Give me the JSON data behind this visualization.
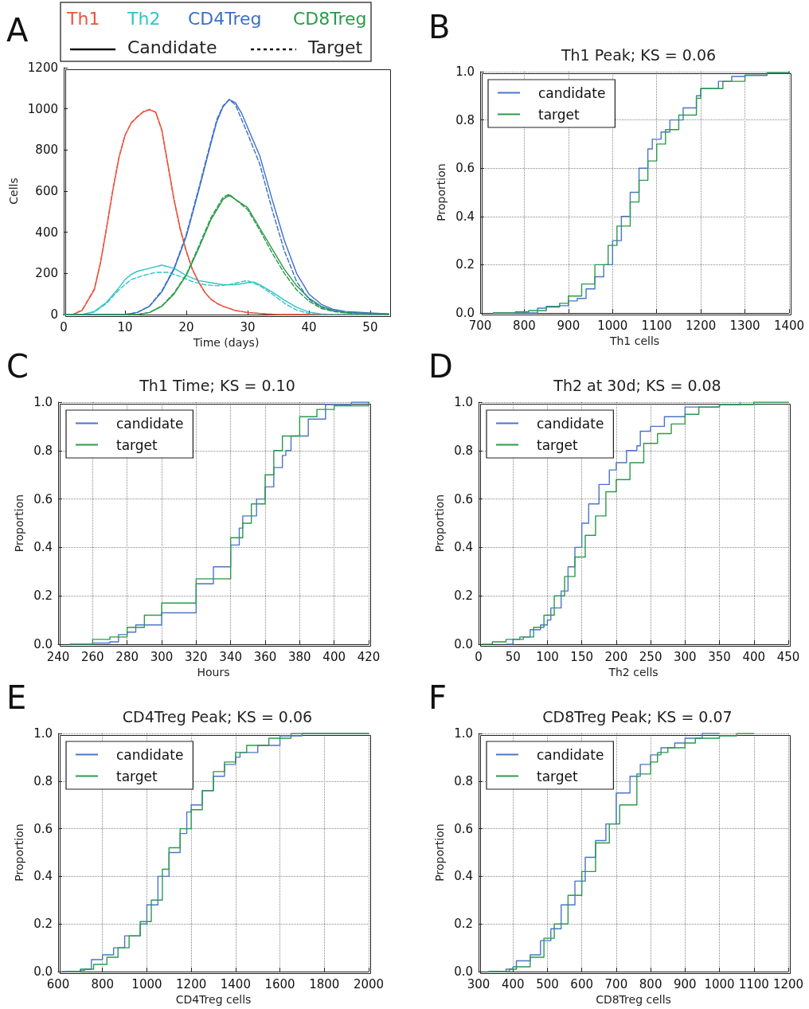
{
  "chart_data": [
    {
      "type": "line",
      "xlabel": "Time (days)",
      "ylabel": "Cells",
      "annotations": [
        "A",
        "Candidate",
        "Target"
      ],
      "legend": "top",
      "xlim": [
        0,
        53
      ],
      "xticks": [
        0,
        10,
        20,
        30,
        40,
        50
      ],
      "ylim": [
        0,
        1200
      ],
      "yticks": [
        0,
        200,
        400,
        600,
        800,
        1000,
        1200
      ],
      "series": [
        {
          "name": "Th1",
          "color": "#e8553e",
          "x": [
            0,
            1.5,
            3,
            5,
            6,
            7,
            8,
            9,
            10,
            11,
            12,
            13,
            14,
            15,
            16,
            17,
            18,
            19,
            20,
            21,
            22,
            23,
            24,
            25,
            26,
            28,
            30,
            33,
            35,
            53
          ],
          "values": [
            0,
            0,
            20,
            120,
            250,
            420,
            600,
            760,
            870,
            930,
            960,
            985,
            995,
            985,
            900,
            730,
            560,
            420,
            310,
            220,
            160,
            110,
            75,
            55,
            40,
            20,
            10,
            3,
            0,
            0
          ]
        },
        {
          "name": "Th2",
          "color": "#2ec4c8",
          "x": [
            0,
            3,
            5,
            7,
            9,
            10,
            11,
            12,
            14,
            16,
            18,
            20,
            22,
            24,
            26,
            28,
            30,
            31,
            32,
            34,
            36,
            38,
            40,
            42,
            44,
            53
          ],
          "values": [
            0,
            0,
            15,
            60,
            130,
            170,
            195,
            210,
            225,
            240,
            225,
            190,
            165,
            155,
            145,
            145,
            155,
            158,
            145,
            110,
            70,
            35,
            12,
            3,
            0,
            0
          ]
        },
        {
          "name": "CD4Treg",
          "color": "#3a6fc9",
          "x": [
            0,
            10,
            12,
            14,
            16,
            18,
            20,
            22,
            24,
            25,
            26,
            27,
            28,
            29,
            30,
            32,
            34,
            36,
            38,
            40,
            42,
            44,
            46,
            50,
            53
          ],
          "values": [
            0,
            0,
            10,
            40,
            110,
            220,
            380,
            600,
            830,
            940,
            1010,
            1045,
            1030,
            980,
            910,
            770,
            560,
            360,
            200,
            100,
            50,
            25,
            15,
            8,
            3
          ]
        },
        {
          "name": "CD8Treg",
          "color": "#2a9a4a",
          "x": [
            0,
            12,
            14,
            16,
            18,
            20,
            22,
            24,
            26,
            27,
            28,
            30,
            32,
            34,
            36,
            38,
            40,
            42,
            44,
            46,
            50,
            53
          ],
          "values": [
            0,
            0,
            10,
            40,
            100,
            190,
            320,
            460,
            560,
            580,
            560,
            520,
            420,
            320,
            220,
            140,
            80,
            40,
            20,
            10,
            5,
            2
          ]
        },
        {
          "color": "#e8553e",
          "line_style": "dashed",
          "x": [
            0,
            1.5,
            3,
            5,
            6,
            7,
            8,
            9,
            10,
            11,
            12,
            13,
            14,
            15,
            16,
            17,
            18,
            19,
            20,
            21,
            22,
            23,
            24,
            25,
            26,
            28,
            30,
            33,
            35,
            53
          ],
          "values": [
            0,
            0,
            22,
            125,
            255,
            425,
            605,
            765,
            872,
            932,
            962,
            987,
            997,
            983,
            895,
            725,
            555,
            415,
            305,
            218,
            158,
            108,
            74,
            54,
            40,
            20,
            10,
            3,
            0,
            0
          ]
        },
        {
          "color": "#2ec4c8",
          "line_style": "dashed",
          "x": [
            0,
            3,
            5,
            7,
            9,
            11,
            13,
            15,
            17,
            19,
            21,
            23,
            25,
            27,
            29,
            30,
            32,
            34,
            36,
            38,
            40,
            42,
            53
          ],
          "values": [
            0,
            0,
            12,
            55,
            120,
            170,
            190,
            205,
            205,
            185,
            160,
            145,
            140,
            145,
            160,
            165,
            140,
            100,
            55,
            22,
            5,
            0,
            0
          ]
        },
        {
          "color": "#3a6fc9",
          "line_style": "dashed",
          "x": [
            0,
            10,
            12,
            14,
            16,
            18,
            20,
            22,
            24,
            25,
            26,
            27,
            28,
            30,
            32,
            34,
            36,
            38,
            40,
            42,
            44,
            46,
            50,
            53
          ],
          "values": [
            0,
            0,
            10,
            42,
            115,
            225,
            390,
            610,
            840,
            950,
            1015,
            1045,
            1020,
            880,
            730,
            510,
            310,
            160,
            75,
            35,
            18,
            10,
            5,
            2
          ]
        },
        {
          "color": "#2a9a4a",
          "line_style": "dashed",
          "x": [
            0,
            12,
            14,
            16,
            18,
            20,
            22,
            24,
            26,
            27,
            28,
            30,
            32,
            34,
            36,
            38,
            40,
            42,
            44,
            46,
            50,
            53
          ],
          "values": [
            0,
            0,
            10,
            42,
            105,
            195,
            330,
            470,
            570,
            585,
            560,
            510,
            410,
            300,
            200,
            120,
            65,
            30,
            15,
            8,
            4,
            2
          ]
        }
      ]
    },
    {
      "type": "step",
      "title": "Th1 Peak; KS = 0.06",
      "xlabel": "Th1 cells",
      "ylabel": "Proportion",
      "annotations": [
        "B"
      ],
      "legend": "top left",
      "grid": true,
      "xlim": [
        700,
        1400
      ],
      "xticks": [
        700,
        800,
        900,
        1000,
        1100,
        1200,
        1300,
        1400
      ],
      "ylim": [
        0,
        1
      ],
      "yticks": [
        {
          "value": 0,
          "label": "0.0"
        },
        {
          "value": 0.2,
          "label": "0.2"
        },
        {
          "value": 0.4,
          "label": "0.4"
        },
        {
          "value": 0.6,
          "label": "0.6"
        },
        {
          "value": 0.8,
          "label": "0.8"
        },
        {
          "value": 1,
          "label": "1.0"
        }
      ],
      "series": [
        {
          "name": "candidate",
          "color": "#4a75c8",
          "x": [
            730,
            810,
            830,
            850,
            880,
            900,
            920,
            940,
            960,
            980,
            1000,
            1020,
            1040,
            1060,
            1080,
            1090,
            1110,
            1130,
            1160,
            1190,
            1200,
            1240,
            1270,
            1300,
            1350,
            1400
          ],
          "values": [
            0,
            0,
            0.02,
            0.027,
            0.03,
            0.05,
            0.06,
            0.1,
            0.15,
            0.2,
            0.3,
            0.4,
            0.5,
            0.6,
            0.68,
            0.72,
            0.75,
            0.8,
            0.85,
            0.9,
            0.93,
            0.96,
            0.98,
            0.985,
            0.995,
            1
          ]
        },
        {
          "name": "target",
          "color": "#2a9a4a",
          "x": [
            730,
            780,
            810,
            850,
            880,
            900,
            930,
            960,
            990,
            1010,
            1040,
            1060,
            1080,
            1100,
            1120,
            1150,
            1190,
            1200,
            1250,
            1300,
            1350,
            1400
          ],
          "values": [
            0,
            0.005,
            0.01,
            0.025,
            0.04,
            0.07,
            0.12,
            0.2,
            0.28,
            0.36,
            0.46,
            0.55,
            0.63,
            0.7,
            0.76,
            0.82,
            0.89,
            0.93,
            0.96,
            0.985,
            0.995,
            1
          ]
        }
      ]
    },
    {
      "type": "step",
      "title": "Th1 Time; KS = 0.10",
      "xlabel": "Hours",
      "ylabel": "Proportion",
      "annotations": [
        "C"
      ],
      "legend": "top left",
      "grid": true,
      "xlim": [
        240,
        420
      ],
      "xticks": [
        240,
        260,
        280,
        300,
        320,
        340,
        360,
        380,
        400,
        420
      ],
      "ylim": [
        0,
        1
      ],
      "yticks": [
        {
          "value": 0,
          "label": "0.0"
        },
        {
          "value": 0.2,
          "label": "0.2"
        },
        {
          "value": 0.4,
          "label": "0.4"
        },
        {
          "value": 0.6,
          "label": "0.6"
        },
        {
          "value": 0.8,
          "label": "0.8"
        },
        {
          "value": 1,
          "label": "1.0"
        }
      ],
      "series": [
        {
          "name": "candidate",
          "color": "#4a75c8",
          "x": [
            247,
            260,
            270,
            275,
            280,
            285,
            300,
            320,
            330,
            340,
            345,
            347,
            355,
            360,
            365,
            370,
            372,
            375,
            385,
            395,
            410,
            420
          ],
          "values": [
            0,
            0.005,
            0.01,
            0.04,
            0.05,
            0.08,
            0.13,
            0.25,
            0.32,
            0.41,
            0.48,
            0.53,
            0.6,
            0.65,
            0.73,
            0.78,
            0.8,
            0.86,
            0.93,
            0.99,
            1,
            1
          ]
        },
        {
          "name": "target",
          "color": "#2a9a4a",
          "x": [
            247,
            260,
            270,
            280,
            290,
            300,
            320,
            340,
            347,
            352,
            360,
            365,
            370,
            380,
            390,
            400,
            405,
            420
          ],
          "values": [
            0,
            0.02,
            0.03,
            0.07,
            0.12,
            0.17,
            0.27,
            0.44,
            0.5,
            0.58,
            0.7,
            0.8,
            0.86,
            0.94,
            0.97,
            0.985,
            0.985,
            1
          ]
        }
      ]
    },
    {
      "type": "step",
      "title": "Th2 at 30d; KS = 0.08",
      "xlabel": "Th2 cells",
      "ylabel": "Proportion",
      "annotations": [
        "D"
      ],
      "legend": "top left",
      "grid": true,
      "xlim": [
        0,
        450
      ],
      "xticks": [
        0,
        50,
        100,
        150,
        200,
        250,
        300,
        350,
        400,
        450
      ],
      "ylim": [
        0,
        1
      ],
      "yticks": [
        {
          "value": 0,
          "label": "0.0"
        },
        {
          "value": 0.2,
          "label": "0.2"
        },
        {
          "value": 0.4,
          "label": "0.4"
        },
        {
          "value": 0.6,
          "label": "0.6"
        },
        {
          "value": 0.8,
          "label": "0.8"
        },
        {
          "value": 1,
          "label": "1.0"
        }
      ],
      "series": [
        {
          "name": "candidate",
          "color": "#4a75c8",
          "x": [
            40,
            50,
            65,
            75,
            90,
            100,
            105,
            120,
            130,
            140,
            150,
            160,
            175,
            190,
            200,
            215,
            230,
            235,
            250,
            270,
            300,
            350,
            380
          ],
          "values": [
            0,
            0.02,
            0.03,
            0.06,
            0.08,
            0.1,
            0.15,
            0.22,
            0.32,
            0.4,
            0.5,
            0.58,
            0.66,
            0.72,
            0.75,
            0.8,
            0.82,
            0.88,
            0.9,
            0.94,
            0.98,
            0.99,
            1
          ]
        },
        {
          "name": "target",
          "color": "#2a9a4a",
          "x": [
            5,
            20,
            40,
            60,
            80,
            95,
            110,
            125,
            140,
            155,
            170,
            185,
            200,
            220,
            240,
            260,
            280,
            300,
            320,
            350,
            400,
            450
          ],
          "values": [
            0,
            0.01,
            0.02,
            0.03,
            0.07,
            0.12,
            0.2,
            0.28,
            0.36,
            0.45,
            0.53,
            0.63,
            0.68,
            0.75,
            0.83,
            0.87,
            0.91,
            0.95,
            0.98,
            0.99,
            1,
            1
          ]
        }
      ]
    },
    {
      "type": "step",
      "title": "CD4Treg Peak; KS = 0.06",
      "xlabel": "CD4Treg cells",
      "ylabel": "Proportion",
      "annotations": [
        "E"
      ],
      "legend": "top left",
      "grid": true,
      "xlim": [
        600,
        2000
      ],
      "xticks": [
        600,
        800,
        1000,
        1200,
        1400,
        1600,
        1800,
        2000
      ],
      "ylim": [
        0,
        1
      ],
      "yticks": [
        {
          "value": 0,
          "label": "0.0"
        },
        {
          "value": 0.2,
          "label": "0.2"
        },
        {
          "value": 0.4,
          "label": "0.4"
        },
        {
          "value": 0.6,
          "label": "0.6"
        },
        {
          "value": 0.8,
          "label": "0.8"
        },
        {
          "value": 1,
          "label": "1.0"
        }
      ],
      "series": [
        {
          "name": "candidate",
          "color": "#4a75c8",
          "x": [
            620,
            700,
            720,
            750,
            800,
            850,
            900,
            970,
            1000,
            1050,
            1100,
            1150,
            1180,
            1200,
            1250,
            1300,
            1350,
            1400,
            1420,
            1500,
            1600,
            1700,
            2000
          ],
          "values": [
            0,
            0.005,
            0.01,
            0.05,
            0.07,
            0.1,
            0.15,
            0.2,
            0.28,
            0.4,
            0.5,
            0.58,
            0.67,
            0.7,
            0.76,
            0.82,
            0.87,
            0.9,
            0.92,
            0.95,
            0.99,
            1,
            1
          ]
        },
        {
          "name": "target",
          "color": "#2a9a4a",
          "x": [
            640,
            700,
            760,
            820,
            870,
            920,
            970,
            1020,
            1070,
            1100,
            1150,
            1200,
            1250,
            1300,
            1350,
            1400,
            1450,
            1550,
            1650,
            2000
          ],
          "values": [
            0,
            0.01,
            0.03,
            0.06,
            0.1,
            0.15,
            0.21,
            0.3,
            0.43,
            0.52,
            0.6,
            0.68,
            0.76,
            0.84,
            0.88,
            0.92,
            0.95,
            0.98,
            1,
            1
          ]
        }
      ]
    },
    {
      "type": "step",
      "title": "CD8Treg Peak; KS = 0.07",
      "xlabel": "CD8Treg cells",
      "ylabel": "Proportion",
      "annotations": [
        "F"
      ],
      "legend": "top left",
      "grid": true,
      "xlim": [
        300,
        1200
      ],
      "xticks": [
        300,
        400,
        500,
        600,
        700,
        800,
        900,
        1000,
        1100,
        1200
      ],
      "ylim": [
        0,
        1
      ],
      "yticks": [
        {
          "value": 0,
          "label": "0.0"
        },
        {
          "value": 0.2,
          "label": "0.2"
        },
        {
          "value": 0.4,
          "label": "0.4"
        },
        {
          "value": 0.6,
          "label": "0.6"
        },
        {
          "value": 0.8,
          "label": "0.8"
        },
        {
          "value": 1,
          "label": "1.0"
        }
      ],
      "series": [
        {
          "name": "candidate",
          "color": "#4a75c8",
          "x": [
            330,
            380,
            400,
            410,
            450,
            480,
            510,
            540,
            580,
            610,
            640,
            670,
            700,
            740,
            770,
            800,
            830,
            870,
            900,
            950,
            1000
          ],
          "values": [
            0,
            0.01,
            0.02,
            0.045,
            0.07,
            0.13,
            0.18,
            0.28,
            0.38,
            0.48,
            0.55,
            0.62,
            0.75,
            0.82,
            0.87,
            0.91,
            0.94,
            0.96,
            0.98,
            1,
            1
          ]
        },
        {
          "name": "target",
          "color": "#2a9a4a",
          "x": [
            330,
            390,
            410,
            450,
            490,
            520,
            560,
            600,
            640,
            680,
            710,
            760,
            800,
            820,
            850,
            900,
            930,
            1000,
            1050,
            1100
          ],
          "values": [
            0,
            0.01,
            0.02,
            0.06,
            0.14,
            0.2,
            0.32,
            0.42,
            0.54,
            0.62,
            0.7,
            0.83,
            0.88,
            0.92,
            0.94,
            0.96,
            0.98,
            0.99,
            1,
            1
          ]
        }
      ]
    }
  ]
}
